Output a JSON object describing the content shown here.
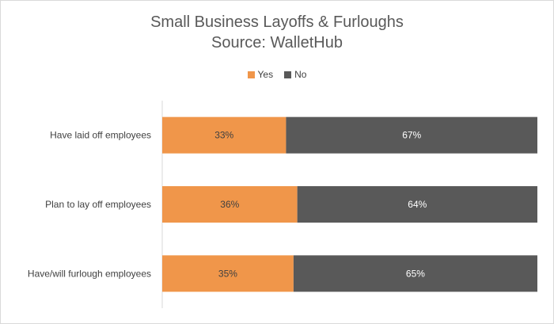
{
  "chart_data": {
    "type": "bar",
    "orientation": "horizontal",
    "stacked": true,
    "title": "Small Business Layoffs & Furloughs",
    "subtitle": "Source: WalletHub",
    "categories": [
      "Have laid off employees",
      "Plan to lay off employees",
      "Have/will furlough employees"
    ],
    "series": [
      {
        "name": "Yes",
        "values": [
          33,
          36,
          35
        ],
        "labels": [
          "33%",
          "36%",
          "35%"
        ],
        "color": "#F0964A"
      },
      {
        "name": "No",
        "values": [
          67,
          64,
          65
        ],
        "labels": [
          "67%",
          "64%",
          "65%"
        ],
        "color": "#595959"
      }
    ],
    "xlim": [
      0,
      100
    ],
    "legend": "top",
    "grid": false
  }
}
